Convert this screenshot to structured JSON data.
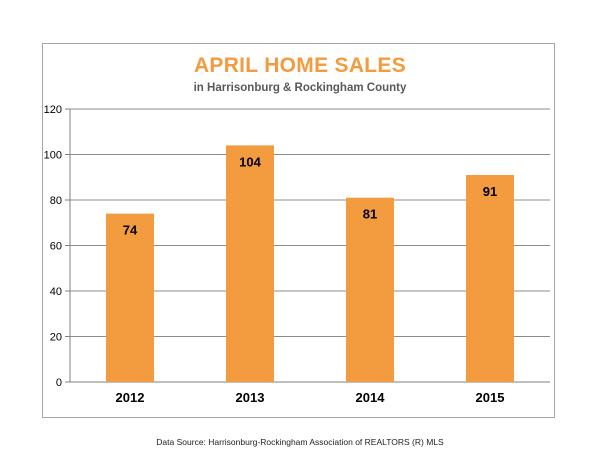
{
  "chart_data": {
    "type": "bar",
    "title": "APRIL HOME SALES",
    "subtitle": "in Harrisonburg & Rockingham County",
    "categories": [
      "2012",
      "2013",
      "2014",
      "2015"
    ],
    "values": [
      74,
      104,
      81,
      91
    ],
    "data_labels": [
      "74",
      "104",
      "81",
      "91"
    ],
    "ylim": [
      0,
      120
    ],
    "yticks": [
      "0",
      "20",
      "40",
      "60",
      "80",
      "100",
      "120"
    ],
    "grid": true,
    "legend": "none",
    "bar_color": "#f39b3f",
    "title_color": "#f39b3f"
  },
  "source_note": "Data Source: Harrisonburg-Rockingham Association of REALTORS (R) MLS"
}
